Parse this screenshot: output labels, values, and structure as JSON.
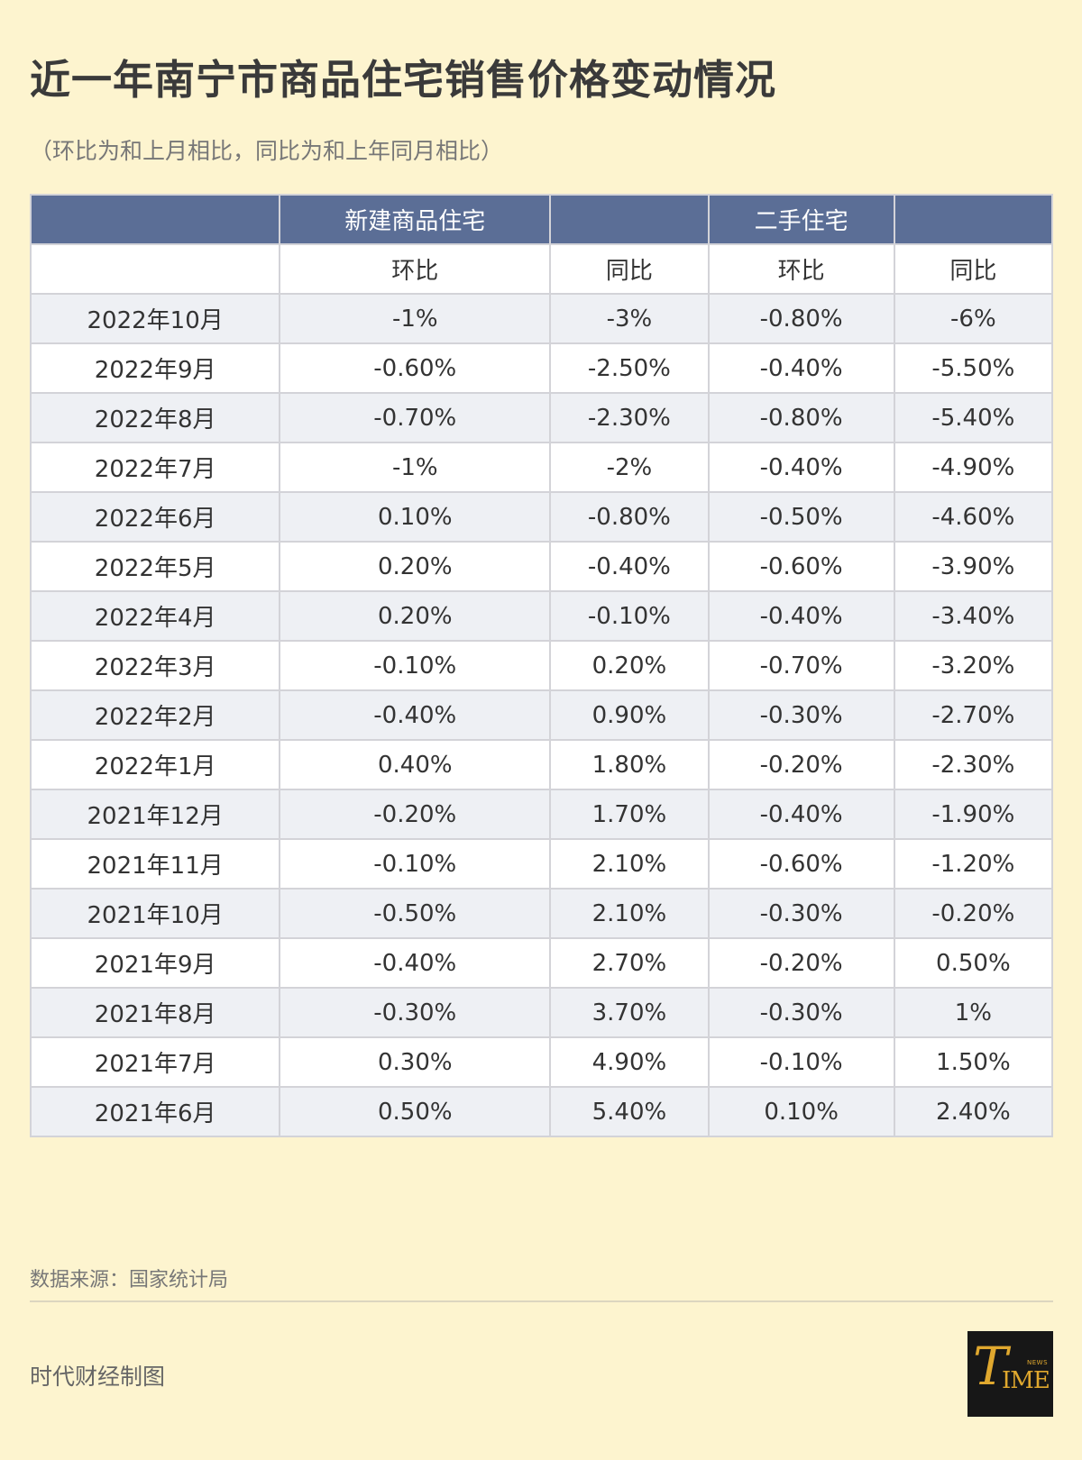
{
  "title": "近一年南宁市商品住宅销售价格变动情况",
  "subtitle": "（环比为和上月相比，同比为和上年同月相比）",
  "table": {
    "group_headers": [
      "",
      "新建商品住宅",
      "",
      "二手住宅",
      ""
    ],
    "sub_headers": [
      "",
      "环比",
      "同比",
      "环比",
      "同比"
    ],
    "rows": [
      [
        "2022年10月",
        "-1%",
        "-3%",
        "-0.80%",
        "-6%"
      ],
      [
        "2022年9月",
        "-0.60%",
        "-2.50%",
        "-0.40%",
        "-5.50%"
      ],
      [
        "2022年8月",
        "-0.70%",
        "-2.30%",
        "-0.80%",
        "-5.40%"
      ],
      [
        "2022年7月",
        "-1%",
        "-2%",
        "-0.40%",
        "-4.90%"
      ],
      [
        "2022年6月",
        "0.10%",
        "-0.80%",
        "-0.50%",
        "-4.60%"
      ],
      [
        "2022年5月",
        "0.20%",
        "-0.40%",
        "-0.60%",
        "-3.90%"
      ],
      [
        "2022年4月",
        "0.20%",
        "-0.10%",
        "-0.40%",
        "-3.40%"
      ],
      [
        "2022年3月",
        "-0.10%",
        "0.20%",
        "-0.70%",
        "-3.20%"
      ],
      [
        "2022年2月",
        "-0.40%",
        "0.90%",
        "-0.30%",
        "-2.70%"
      ],
      [
        "2022年1月",
        "0.40%",
        "1.80%",
        "-0.20%",
        "-2.30%"
      ],
      [
        "2021年12月",
        "-0.20%",
        "1.70%",
        "-0.40%",
        "-1.90%"
      ],
      [
        "2021年11月",
        "-0.10%",
        "2.10%",
        "-0.60%",
        "-1.20%"
      ],
      [
        "2021年10月",
        "-0.50%",
        "2.10%",
        "-0.30%",
        "-0.20%"
      ],
      [
        "2021年9月",
        "-0.40%",
        "2.70%",
        "-0.20%",
        "0.50%"
      ],
      [
        "2021年8月",
        "-0.30%",
        "3.70%",
        "-0.30%",
        "1%"
      ],
      [
        "2021年7月",
        "0.30%",
        "4.90%",
        "-0.10%",
        "1.50%"
      ],
      [
        "2021年6月",
        "0.50%",
        "5.40%",
        "0.10%",
        "2.40%"
      ]
    ]
  },
  "source": "数据来源：国家统计局",
  "credit": "时代财经制图",
  "logo": {
    "name": "time-news-logo",
    "t": "T",
    "ime": "IME",
    "news": "NEWS"
  },
  "colors": {
    "background": "#fdf4cf",
    "header": "#5b6e96",
    "row_alt": "#eef0f4",
    "logo_gold": "#e0a82e"
  }
}
